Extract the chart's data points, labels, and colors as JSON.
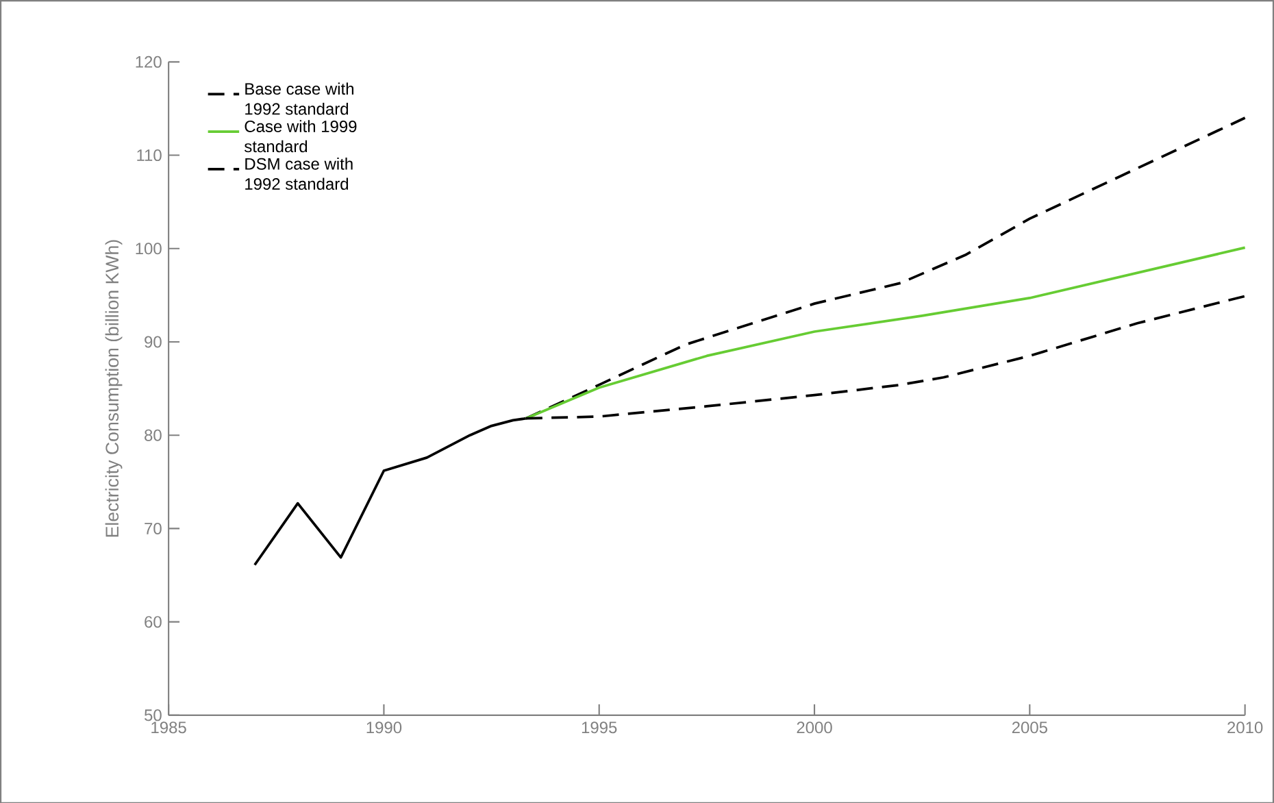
{
  "chart_data": {
    "type": "line",
    "ylabel": "Electricity Consumption (billion KWh)",
    "xlim": [
      1985,
      2010
    ],
    "ylim": [
      50,
      120
    ],
    "xticks": [
      1985,
      1990,
      1995,
      2000,
      2005,
      2010
    ],
    "yticks": [
      50,
      60,
      70,
      80,
      90,
      100,
      110,
      120
    ],
    "grid": false,
    "legend": "top left",
    "marker": "none",
    "series": [
      {
        "color": "#000000",
        "line_style": "solid",
        "x": [
          1987,
          1988,
          1989,
          1990,
          1991,
          1992,
          1992.5,
          1993,
          1993.3
        ],
        "values": [
          66.1,
          72.7,
          66.9,
          76.2,
          77.6,
          80.0,
          81.0,
          81.6,
          81.8
        ]
      },
      {
        "name": "Base case with 1992 standard",
        "color": "#000000",
        "line_style": "dashed",
        "x": [
          1993.3,
          1995,
          1997,
          2000,
          2002,
          2003.5,
          2005,
          2007.5,
          2010
        ],
        "values": [
          81.8,
          85.4,
          89.7,
          94.1,
          96.3,
          99.3,
          103.2,
          108.6,
          114.0
        ]
      },
      {
        "name": "Case with 1999 standard",
        "color": "#66cc33",
        "line_style": "solid",
        "x": [
          1993.3,
          1995,
          1997.5,
          2000,
          2002.5,
          2005,
          2007.5,
          2010
        ],
        "values": [
          81.8,
          85.1,
          88.5,
          91.1,
          92.8,
          94.7,
          97.4,
          100.1
        ]
      },
      {
        "name": "DSM case with 1992 standard",
        "color": "#000000",
        "line_style": "dashed",
        "x": [
          1993.3,
          1995,
          1997.5,
          2000,
          2002,
          2003,
          2005,
          2007.5,
          2010
        ],
        "values": [
          81.8,
          82.0,
          83.1,
          84.3,
          85.4,
          86.2,
          88.5,
          92.0,
          94.9
        ]
      }
    ]
  }
}
